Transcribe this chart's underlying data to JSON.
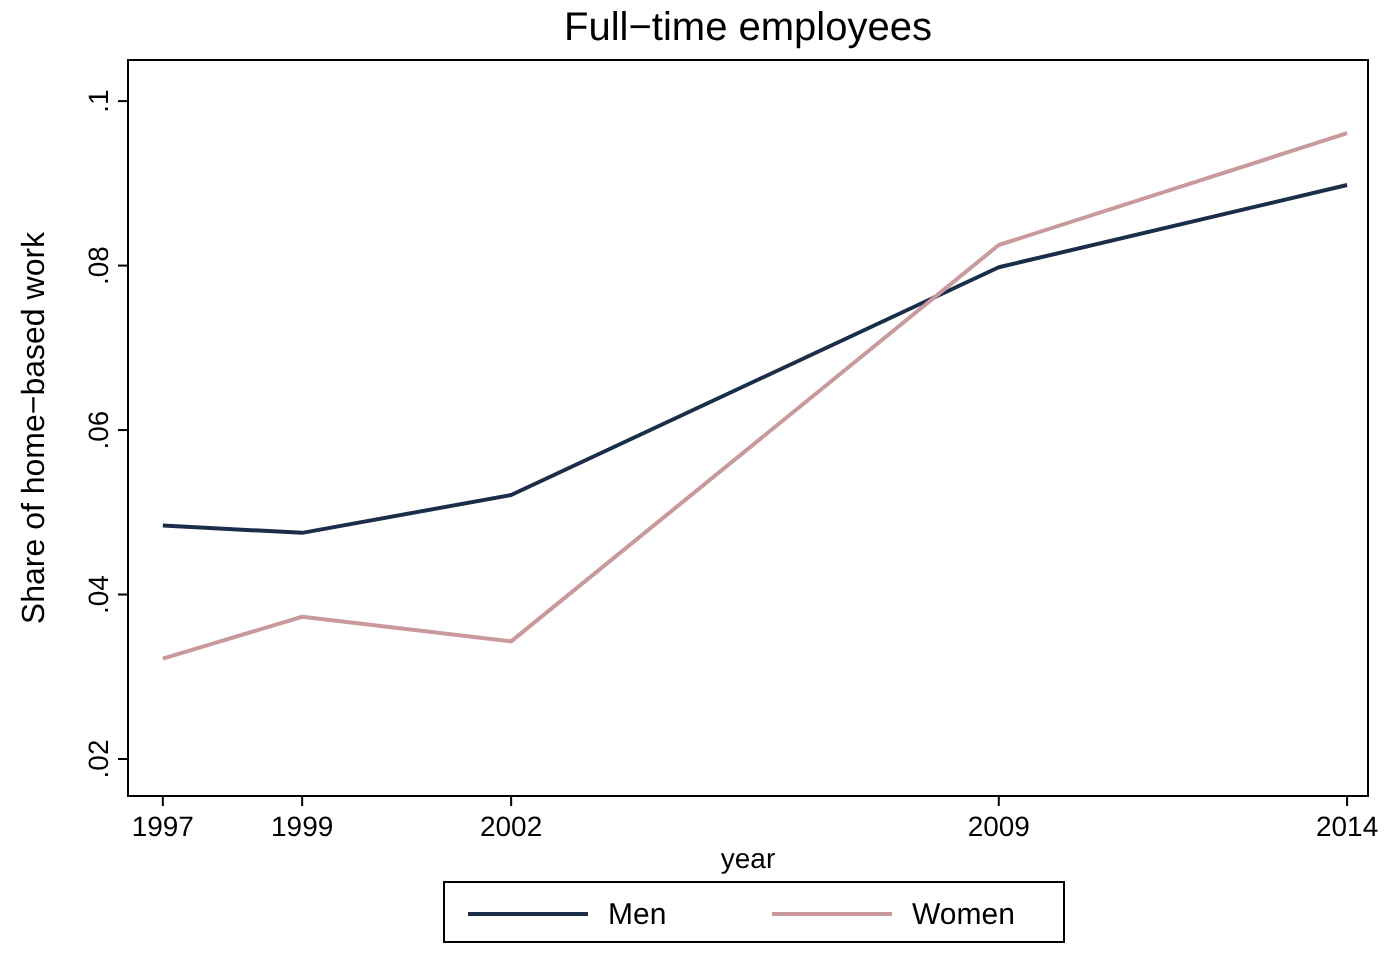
{
  "chart_data": {
    "type": "line",
    "title": "Full−time employees",
    "xlabel": "year",
    "ylabel": "Share of home−based work",
    "x": [
      1997,
      1999,
      2002,
      2009,
      2014
    ],
    "xlim": [
      1996.5,
      2014.3
    ],
    "xticks": [
      1997,
      1999,
      2002,
      2009,
      2014
    ],
    "ylim": [
      0.0155,
      0.105
    ],
    "yticks": [
      {
        "value": 0.02,
        "label": ".02"
      },
      {
        "value": 0.04,
        "label": ".04"
      },
      {
        "value": 0.06,
        "label": ".06"
      },
      {
        "value": 0.08,
        "label": ".08"
      },
      {
        "value": 0.1,
        "label": ".1"
      }
    ],
    "grid": false,
    "legend": "bottom",
    "line_style": "solid",
    "series": [
      {
        "name": "Men",
        "color": "#1a2e4a",
        "values": [
          0.0484,
          0.0475,
          0.0521,
          0.0798,
          0.0898
        ]
      },
      {
        "name": "Women",
        "color": "#c9999b",
        "values": [
          0.0322,
          0.0373,
          0.0343,
          0.0825,
          0.0961
        ]
      }
    ]
  }
}
